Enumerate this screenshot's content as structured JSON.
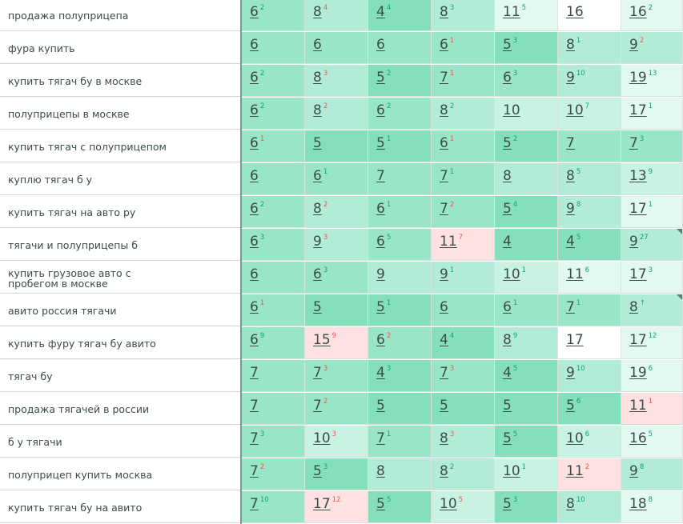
{
  "table": {
    "colors": {
      "green_dark": "#84dfbc",
      "green_mid": "#99e5c8",
      "green_light": "#b2ecd6",
      "green_pale": "#c8f2e2",
      "green_faint": "#e3f8ef",
      "white": "#ffffff",
      "red": "#ffe1e1"
    },
    "rows": [
      {
        "keyword": "продажа полуприцепа",
        "cells": [
          {
            "value": "6",
            "delta": "2",
            "dir": "up",
            "bg": "green_mid"
          },
          {
            "value": "8",
            "delta": "4",
            "dir": "down",
            "bg": "green_light"
          },
          {
            "value": "4",
            "delta": "4",
            "dir": "up",
            "bg": "green_dark"
          },
          {
            "value": "8",
            "delta": "3",
            "dir": "up",
            "bg": "green_light"
          },
          {
            "value": "11",
            "delta": "5",
            "dir": "up",
            "bg": "green_faint"
          },
          {
            "value": "16",
            "delta": "",
            "dir": "",
            "bg": "white"
          },
          {
            "value": "16",
            "delta": "2",
            "dir": "up",
            "bg": "green_faint"
          }
        ]
      },
      {
        "keyword": "фура купить",
        "cells": [
          {
            "value": "6",
            "delta": "",
            "dir": "",
            "bg": "green_mid"
          },
          {
            "value": "6",
            "delta": "",
            "dir": "",
            "bg": "green_mid"
          },
          {
            "value": "6",
            "delta": "",
            "dir": "",
            "bg": "green_mid"
          },
          {
            "value": "6",
            "delta": "1",
            "dir": "down",
            "bg": "green_mid"
          },
          {
            "value": "5",
            "delta": "3",
            "dir": "up",
            "bg": "green_dark"
          },
          {
            "value": "8",
            "delta": "1",
            "dir": "up",
            "bg": "green_light"
          },
          {
            "value": "9",
            "delta": "2",
            "dir": "down",
            "bg": "green_light"
          }
        ]
      },
      {
        "keyword": "купить тягач бу в москве",
        "cells": [
          {
            "value": "6",
            "delta": "2",
            "dir": "up",
            "bg": "green_mid"
          },
          {
            "value": "8",
            "delta": "3",
            "dir": "down",
            "bg": "green_light"
          },
          {
            "value": "5",
            "delta": "2",
            "dir": "up",
            "bg": "green_dark"
          },
          {
            "value": "7",
            "delta": "1",
            "dir": "down",
            "bg": "green_mid"
          },
          {
            "value": "6",
            "delta": "3",
            "dir": "up",
            "bg": "green_mid"
          },
          {
            "value": "9",
            "delta": "10",
            "dir": "up",
            "bg": "green_light"
          },
          {
            "value": "19",
            "delta": "13",
            "dir": "up",
            "bg": "green_faint"
          }
        ]
      },
      {
        "keyword": "полуприцепы в москве",
        "cells": [
          {
            "value": "6",
            "delta": "2",
            "dir": "up",
            "bg": "green_mid"
          },
          {
            "value": "8",
            "delta": "2",
            "dir": "down",
            "bg": "green_light"
          },
          {
            "value": "6",
            "delta": "2",
            "dir": "up",
            "bg": "green_mid"
          },
          {
            "value": "8",
            "delta": "2",
            "dir": "up",
            "bg": "green_light"
          },
          {
            "value": "10",
            "delta": "",
            "dir": "",
            "bg": "green_pale"
          },
          {
            "value": "10",
            "delta": "7",
            "dir": "up",
            "bg": "green_pale"
          },
          {
            "value": "17",
            "delta": "1",
            "dir": "up",
            "bg": "green_faint"
          }
        ]
      },
      {
        "keyword": "купить тягач с полуприцепом",
        "cells": [
          {
            "value": "6",
            "delta": "1",
            "dir": "down",
            "bg": "green_mid"
          },
          {
            "value": "5",
            "delta": "",
            "dir": "",
            "bg": "green_dark"
          },
          {
            "value": "5",
            "delta": "1",
            "dir": "up",
            "bg": "green_dark"
          },
          {
            "value": "6",
            "delta": "1",
            "dir": "down",
            "bg": "green_mid"
          },
          {
            "value": "5",
            "delta": "2",
            "dir": "up",
            "bg": "green_dark"
          },
          {
            "value": "7",
            "delta": "",
            "dir": "",
            "bg": "green_mid"
          },
          {
            "value": "7",
            "delta": "3",
            "dir": "up",
            "bg": "green_mid"
          }
        ]
      },
      {
        "keyword": "куплю тягач б у",
        "cells": [
          {
            "value": "6",
            "delta": "",
            "dir": "",
            "bg": "green_mid"
          },
          {
            "value": "6",
            "delta": "1",
            "dir": "up",
            "bg": "green_mid"
          },
          {
            "value": "7",
            "delta": "",
            "dir": "",
            "bg": "green_mid"
          },
          {
            "value": "7",
            "delta": "1",
            "dir": "up",
            "bg": "green_mid"
          },
          {
            "value": "8",
            "delta": "",
            "dir": "",
            "bg": "green_light"
          },
          {
            "value": "8",
            "delta": "5",
            "dir": "up",
            "bg": "green_light"
          },
          {
            "value": "13",
            "delta": "9",
            "dir": "up",
            "bg": "green_pale"
          }
        ]
      },
      {
        "keyword": "купить тягач на авто ру",
        "cells": [
          {
            "value": "6",
            "delta": "2",
            "dir": "up",
            "bg": "green_mid"
          },
          {
            "value": "8",
            "delta": "2",
            "dir": "down",
            "bg": "green_light"
          },
          {
            "value": "6",
            "delta": "1",
            "dir": "up",
            "bg": "green_mid"
          },
          {
            "value": "7",
            "delta": "2",
            "dir": "down",
            "bg": "green_mid"
          },
          {
            "value": "5",
            "delta": "4",
            "dir": "up",
            "bg": "green_dark"
          },
          {
            "value": "9",
            "delta": "8",
            "dir": "up",
            "bg": "green_light"
          },
          {
            "value": "17",
            "delta": "1",
            "dir": "up",
            "bg": "green_faint"
          }
        ]
      },
      {
        "keyword": "тягачи и полуприцепы б",
        "tri": true,
        "cells": [
          {
            "value": "6",
            "delta": "3",
            "dir": "up",
            "bg": "green_mid"
          },
          {
            "value": "9",
            "delta": "3",
            "dir": "down",
            "bg": "green_light"
          },
          {
            "value": "6",
            "delta": "5",
            "dir": "up",
            "bg": "green_mid"
          },
          {
            "value": "11",
            "delta": "7",
            "dir": "down",
            "bg": "red"
          },
          {
            "value": "4",
            "delta": "",
            "dir": "",
            "bg": "green_dark"
          },
          {
            "value": "4",
            "delta": "5",
            "dir": "up",
            "bg": "green_dark"
          },
          {
            "value": "9",
            "delta": "27",
            "dir": "up",
            "bg": "green_light"
          }
        ]
      },
      {
        "keyword": "купить грузовое авто с пробегом в москве",
        "cells": [
          {
            "value": "6",
            "delta": "",
            "dir": "",
            "bg": "green_mid"
          },
          {
            "value": "6",
            "delta": "3",
            "dir": "up",
            "bg": "green_mid"
          },
          {
            "value": "9",
            "delta": "",
            "dir": "",
            "bg": "green_light"
          },
          {
            "value": "9",
            "delta": "1",
            "dir": "up",
            "bg": "green_light"
          },
          {
            "value": "10",
            "delta": "1",
            "dir": "up",
            "bg": "green_pale"
          },
          {
            "value": "11",
            "delta": "6",
            "dir": "up",
            "bg": "green_faint"
          },
          {
            "value": "17",
            "delta": "3",
            "dir": "up",
            "bg": "green_faint"
          }
        ]
      },
      {
        "keyword": "авито россия тягачи",
        "tri": true,
        "cells": [
          {
            "value": "6",
            "delta": "1",
            "dir": "down",
            "bg": "green_mid"
          },
          {
            "value": "5",
            "delta": "",
            "dir": "",
            "bg": "green_dark"
          },
          {
            "value": "5",
            "delta": "1",
            "dir": "up",
            "bg": "green_dark"
          },
          {
            "value": "6",
            "delta": "",
            "dir": "",
            "bg": "green_mid"
          },
          {
            "value": "6",
            "delta": "1",
            "dir": "up",
            "bg": "green_mid"
          },
          {
            "value": "7",
            "delta": "1",
            "dir": "up",
            "bg": "green_mid"
          },
          {
            "value": "8",
            "delta": "↑",
            "dir": "up",
            "bg": "green_light"
          }
        ]
      },
      {
        "keyword": "купить фуру тягач бу авито",
        "cells": [
          {
            "value": "6",
            "delta": "9",
            "dir": "up",
            "bg": "green_mid"
          },
          {
            "value": "15",
            "delta": "9",
            "dir": "down",
            "bg": "red"
          },
          {
            "value": "6",
            "delta": "2",
            "dir": "down",
            "bg": "green_mid"
          },
          {
            "value": "4",
            "delta": "4",
            "dir": "up",
            "bg": "green_dark"
          },
          {
            "value": "8",
            "delta": "9",
            "dir": "up",
            "bg": "green_light"
          },
          {
            "value": "17",
            "delta": "",
            "dir": "",
            "bg": "white"
          },
          {
            "value": "17",
            "delta": "12",
            "dir": "up",
            "bg": "green_faint"
          }
        ]
      },
      {
        "keyword": "тягач бу",
        "cells": [
          {
            "value": "7",
            "delta": "",
            "dir": "",
            "bg": "green_mid"
          },
          {
            "value": "7",
            "delta": "3",
            "dir": "down",
            "bg": "green_mid"
          },
          {
            "value": "4",
            "delta": "3",
            "dir": "up",
            "bg": "green_dark"
          },
          {
            "value": "7",
            "delta": "3",
            "dir": "down",
            "bg": "green_mid"
          },
          {
            "value": "4",
            "delta": "5",
            "dir": "up",
            "bg": "green_dark"
          },
          {
            "value": "9",
            "delta": "10",
            "dir": "up",
            "bg": "green_light"
          },
          {
            "value": "19",
            "delta": "6",
            "dir": "up",
            "bg": "green_faint"
          }
        ]
      },
      {
        "keyword": "продажа тягачей в россии",
        "cells": [
          {
            "value": "7",
            "delta": "",
            "dir": "",
            "bg": "green_mid"
          },
          {
            "value": "7",
            "delta": "2",
            "dir": "down",
            "bg": "green_mid"
          },
          {
            "value": "5",
            "delta": "",
            "dir": "",
            "bg": "green_dark"
          },
          {
            "value": "5",
            "delta": "",
            "dir": "",
            "bg": "green_dark"
          },
          {
            "value": "5",
            "delta": "",
            "dir": "",
            "bg": "green_dark"
          },
          {
            "value": "5",
            "delta": "6",
            "dir": "up",
            "bg": "green_dark"
          },
          {
            "value": "11",
            "delta": "1",
            "dir": "down",
            "bg": "red"
          }
        ]
      },
      {
        "keyword": "б у тягачи",
        "cells": [
          {
            "value": "7",
            "delta": "3",
            "dir": "up",
            "bg": "green_mid"
          },
          {
            "value": "10",
            "delta": "3",
            "dir": "down",
            "bg": "green_pale"
          },
          {
            "value": "7",
            "delta": "1",
            "dir": "up",
            "bg": "green_mid"
          },
          {
            "value": "8",
            "delta": "3",
            "dir": "down",
            "bg": "green_light"
          },
          {
            "value": "5",
            "delta": "5",
            "dir": "up",
            "bg": "green_dark"
          },
          {
            "value": "10",
            "delta": "6",
            "dir": "up",
            "bg": "green_pale"
          },
          {
            "value": "16",
            "delta": "5",
            "dir": "up",
            "bg": "green_faint"
          }
        ]
      },
      {
        "keyword": "полуприцеп купить москва",
        "cells": [
          {
            "value": "7",
            "delta": "2",
            "dir": "down",
            "bg": "green_mid"
          },
          {
            "value": "5",
            "delta": "3",
            "dir": "up",
            "bg": "green_dark"
          },
          {
            "value": "8",
            "delta": "",
            "dir": "",
            "bg": "green_light"
          },
          {
            "value": "8",
            "delta": "2",
            "dir": "up",
            "bg": "green_light"
          },
          {
            "value": "10",
            "delta": "1",
            "dir": "up",
            "bg": "green_pale"
          },
          {
            "value": "11",
            "delta": "2",
            "dir": "down",
            "bg": "red"
          },
          {
            "value": "9",
            "delta": "8",
            "dir": "up",
            "bg": "green_light"
          }
        ]
      },
      {
        "keyword": "купить тягач бу на авито",
        "cells": [
          {
            "value": "7",
            "delta": "10",
            "dir": "up",
            "bg": "green_mid"
          },
          {
            "value": "17",
            "delta": "12",
            "dir": "down",
            "bg": "red"
          },
          {
            "value": "5",
            "delta": "5",
            "dir": "up",
            "bg": "green_dark"
          },
          {
            "value": "10",
            "delta": "5",
            "dir": "down",
            "bg": "green_pale"
          },
          {
            "value": "5",
            "delta": "3",
            "dir": "up",
            "bg": "green_dark"
          },
          {
            "value": "8",
            "delta": "10",
            "dir": "up",
            "bg": "green_light"
          },
          {
            "value": "18",
            "delta": "8",
            "dir": "up",
            "bg": "green_faint"
          }
        ]
      }
    ]
  }
}
